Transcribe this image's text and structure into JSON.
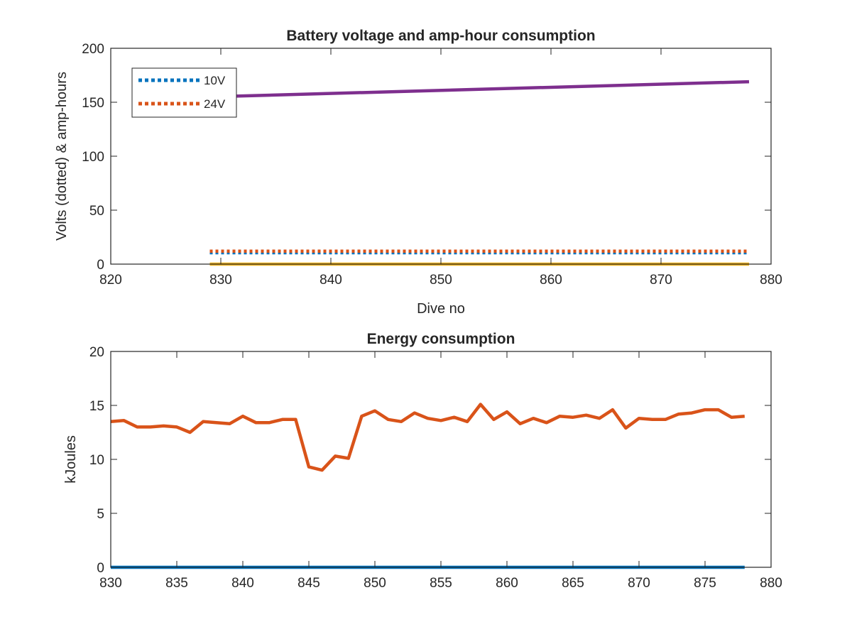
{
  "chart_data": [
    {
      "type": "line",
      "title": "Battery voltage and amp-hour consumption",
      "xlabel": "Dive no",
      "ylabel": "Volts (dotted) & amp-hours",
      "xlim": [
        820,
        880
      ],
      "ylim": [
        0,
        200
      ],
      "xticks": [
        820,
        830,
        840,
        850,
        860,
        870,
        880
      ],
      "yticks": [
        0,
        50,
        100,
        150,
        200
      ],
      "legend_position": "top-left",
      "series": [
        {
          "name": "10V",
          "style": "dotted",
          "color": "#0072BD",
          "x": [
            829,
            878
          ],
          "y": [
            10.5,
            10.5
          ]
        },
        {
          "name": "24V",
          "style": "dotted",
          "color": "#D95319",
          "x": [
            829,
            878
          ],
          "y": [
            12,
            12
          ]
        },
        {
          "name": "",
          "style": "solid",
          "color": "#EDB120",
          "x": [
            829,
            878
          ],
          "y": [
            0,
            0
          ]
        },
        {
          "name": "",
          "style": "solid",
          "color": "#7E2F8E",
          "x": [
            829,
            878
          ],
          "y": [
            155,
            169
          ]
        }
      ]
    },
    {
      "type": "line",
      "title": "Energy consumption",
      "xlabel": "",
      "ylabel": "kJoules",
      "xlim": [
        830,
        880
      ],
      "ylim": [
        0,
        20
      ],
      "xticks": [
        830,
        835,
        840,
        845,
        850,
        855,
        860,
        865,
        870,
        875,
        880
      ],
      "yticks": [
        0,
        5,
        10,
        15,
        20
      ],
      "series": [
        {
          "name": "",
          "style": "solid",
          "color": "#0072BD",
          "x": [
            830,
            878
          ],
          "y": [
            0,
            0
          ]
        },
        {
          "name": "",
          "style": "solid",
          "color": "#D95319",
          "x": [
            830,
            831,
            832,
            833,
            834,
            835,
            836,
            837,
            838,
            839,
            840,
            841,
            842,
            843,
            844,
            845,
            846,
            847,
            848,
            849,
            850,
            851,
            852,
            853,
            854,
            855,
            856,
            857,
            858,
            859,
            860,
            861,
            862,
            863,
            864,
            865,
            866,
            867,
            868,
            869,
            870,
            871,
            872,
            873,
            874,
            875,
            876,
            877,
            878
          ],
          "y": [
            13.5,
            13.6,
            13.0,
            13.0,
            13.1,
            13.0,
            12.5,
            13.5,
            13.4,
            13.3,
            14.0,
            13.4,
            13.4,
            13.7,
            13.7,
            9.3,
            9.0,
            10.3,
            10.1,
            14.0,
            14.5,
            13.7,
            13.5,
            14.3,
            13.8,
            13.6,
            13.9,
            13.5,
            15.1,
            13.7,
            14.4,
            13.3,
            13.8,
            13.4,
            14.0,
            13.9,
            14.1,
            13.8,
            14.6,
            12.9,
            13.8,
            13.7,
            13.7,
            14.2,
            14.3,
            14.6,
            14.6,
            13.9,
            14.0
          ]
        }
      ]
    }
  ]
}
